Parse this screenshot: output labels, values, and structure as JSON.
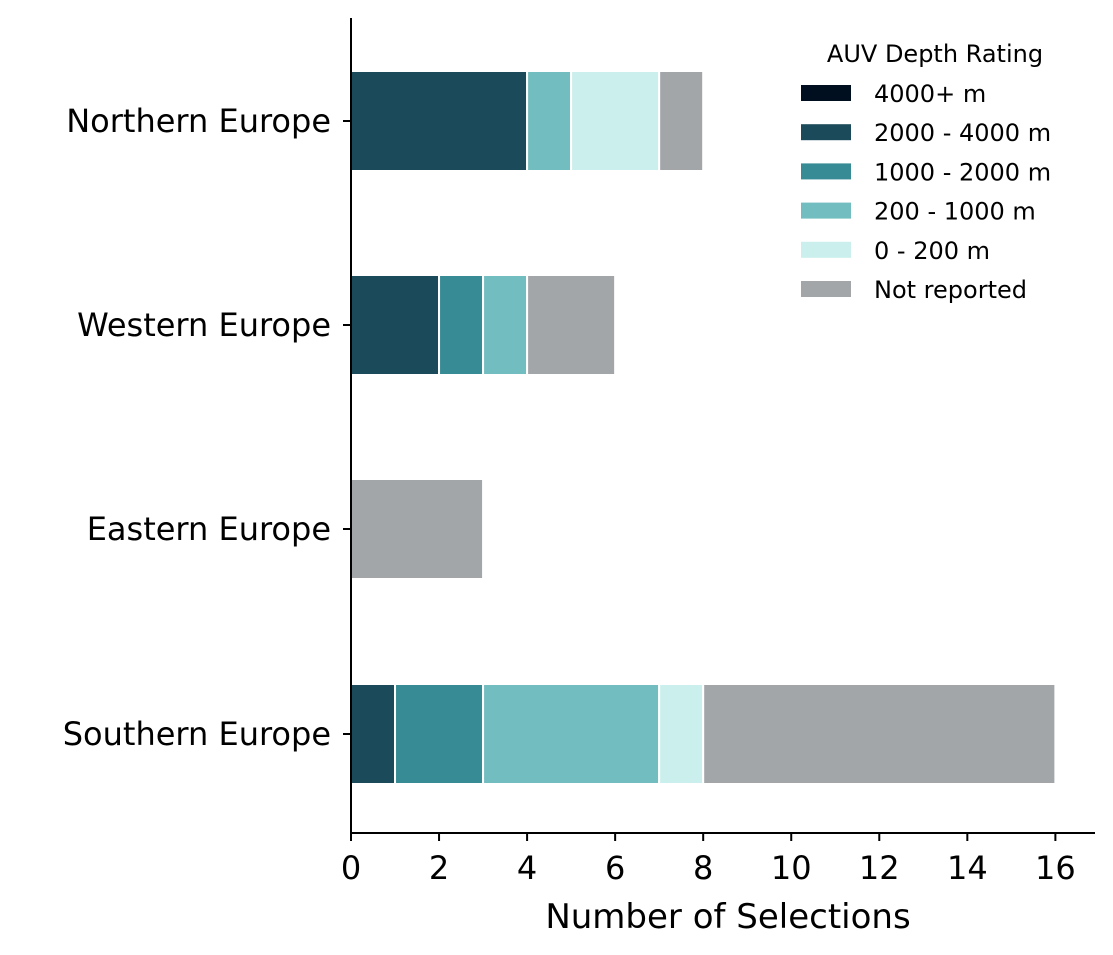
{
  "chart_data": {
    "type": "bar",
    "orientation": "horizontal",
    "stacked": true,
    "title": "",
    "xlabel": "Number of Selections",
    "ylabel": "",
    "xlim": [
      0,
      16.9
    ],
    "xticks": [
      0,
      2,
      4,
      6,
      8,
      10,
      12,
      14,
      16
    ],
    "grid": false,
    "legend_title": "AUV Depth Rating",
    "legend_position": "top-right",
    "categories": [
      "Northern Europe",
      "Western Europe",
      "Eastern Europe",
      "Southern Europe"
    ],
    "series": [
      {
        "name": "4000+ m",
        "color": "#000f1f",
        "values": [
          0,
          0,
          0,
          0
        ]
      },
      {
        "name": "2000 - 4000 m",
        "color": "#1b4a5a",
        "values": [
          4,
          2,
          0,
          1
        ]
      },
      {
        "name": "1000 - 2000 m",
        "color": "#368b94",
        "values": [
          0,
          1,
          0,
          2
        ]
      },
      {
        "name": "200 - 1000 m",
        "color": "#72bdbf",
        "values": [
          1,
          1,
          0,
          4
        ]
      },
      {
        "name": "0 - 200 m",
        "color": "#caefec",
        "values": [
          2,
          0,
          0,
          1
        ]
      },
      {
        "name": "Not reported",
        "color": "#a3a6a9",
        "values": [
          1,
          2,
          3,
          8
        ]
      }
    ]
  }
}
